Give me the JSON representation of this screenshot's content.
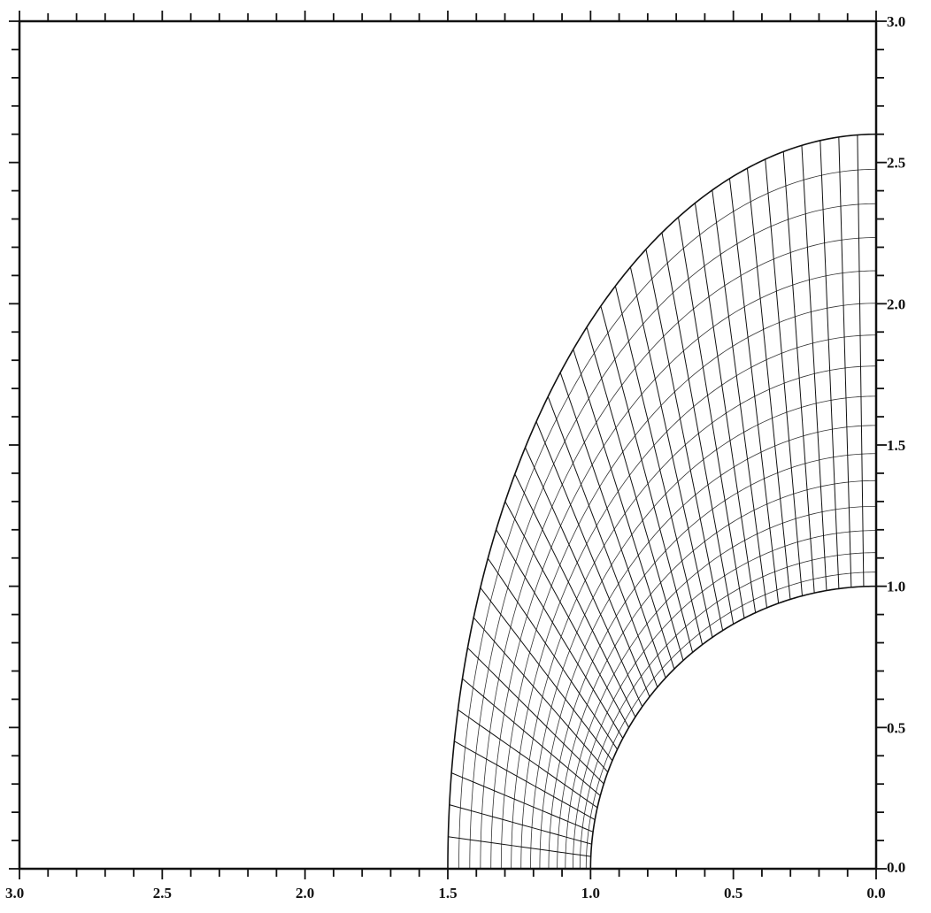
{
  "chart_data": {
    "type": "scatter",
    "title": "",
    "xlabel": "",
    "ylabel": "",
    "xlim": [
      3.0,
      0.0
    ],
    "ylim": [
      0.0,
      3.0
    ],
    "x_reversed": true,
    "grid": false,
    "x_tick_labels": [
      "3.0",
      "2.5",
      "2.0",
      "1.5",
      "1.0",
      "0.5",
      "0.0"
    ],
    "y_tick_labels": [
      "0.0",
      "0.5",
      "1.0",
      "1.5",
      "2.0",
      "2.5",
      "3.0"
    ],
    "x_tick_values": [
      3.0,
      2.5,
      2.0,
      1.5,
      1.0,
      0.5,
      0.0
    ],
    "y_tick_values": [
      0.0,
      0.5,
      1.0,
      1.5,
      2.0,
      2.5,
      3.0
    ],
    "minor_tick_step": 0.1,
    "mesh": {
      "description_of_geometry": "elliptical-annulus structured grid in first quadrant",
      "inner_boundary": {
        "semi_axis_x": 1.0,
        "semi_axis_y": 1.0
      },
      "outer_boundary": {
        "semi_axis_x": 1.5,
        "semi_axis_y": 2.6
      },
      "radial_lines": 37,
      "circumferential_lines": 17,
      "radial_stretch_exponent": 1.25
    },
    "line_color": "#111111"
  }
}
